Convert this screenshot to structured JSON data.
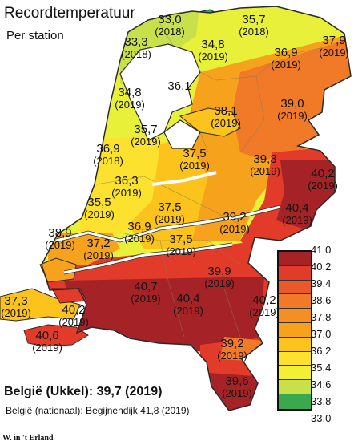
{
  "title": "Recordtemperatuur",
  "subtitle": "Per station",
  "colors": {
    "sea": "#ffffff",
    "outline": "#2a2a2a",
    "water": "#ffffff",
    "zones": [
      "#a52327",
      "#e23b2a",
      "#f07a28",
      "#f7a21c",
      "#fbc31b",
      "#fce22e",
      "#e9f03a",
      "#c8e04a",
      "#3aa84e"
    ]
  },
  "stations": [
    {
      "temp": "33,0",
      "year": "(2018)"
    },
    {
      "temp": "35,7",
      "year": "(2018)"
    },
    {
      "temp": "33,3",
      "year": "(2018)"
    },
    {
      "temp": "34,8",
      "year": "(2019)"
    },
    {
      "temp": "37,9",
      "year": "(2019)"
    },
    {
      "temp": "36,9",
      "year": "(2019)"
    },
    {
      "temp": "36,1",
      "year": ""
    },
    {
      "temp": "34,8",
      "year": "(2019)"
    },
    {
      "temp": "38,1",
      "year": "(2019)"
    },
    {
      "temp": "39,0",
      "year": "(2019)"
    },
    {
      "temp": "35,7",
      "year": "(2019)"
    },
    {
      "temp": "36,9",
      "year": "(2018)"
    },
    {
      "temp": "37,5",
      "year": "(2019)"
    },
    {
      "temp": "39,3",
      "year": "(2019)"
    },
    {
      "temp": "40,2",
      "year": "(2019)"
    },
    {
      "temp": "36,3",
      "year": "(2019)"
    },
    {
      "temp": "35,5",
      "year": "(2019)"
    },
    {
      "temp": "37,5",
      "year": "(2019)"
    },
    {
      "temp": "39,2",
      "year": "(2019)"
    },
    {
      "temp": "40,4",
      "year": "(2019)"
    },
    {
      "temp": "38,9",
      "year": "(2019)"
    },
    {
      "temp": "37,2",
      "year": "(2019)"
    },
    {
      "temp": "36,9",
      "year": "(2019)"
    },
    {
      "temp": "37,5",
      "year": "(2019)"
    },
    {
      "temp": "39,9",
      "year": "(2019)"
    },
    {
      "temp": "40,7",
      "year": "(2019)"
    },
    {
      "temp": "40,4",
      "year": "(2019)"
    },
    {
      "temp": "40,2",
      "year": "(2019)"
    },
    {
      "temp": "37,3",
      "year": "(2019)"
    },
    {
      "temp": "40,2",
      "year": "(2019)"
    },
    {
      "temp": "40,6",
      "year": "(2019)"
    },
    {
      "temp": "39,2",
      "year": "(2019)"
    },
    {
      "temp": "39,6",
      "year": "(2019)"
    }
  ],
  "legend": {
    "labels": [
      "41,0",
      "40,2",
      "39,4",
      "38,6",
      "37,8",
      "37,0",
      "36,2",
      "35,4",
      "34,6",
      "33,8",
      "33,0"
    ],
    "colors": [
      "#a52327",
      "#e23b2a",
      "#e95a2b",
      "#f07a28",
      "#f58f22",
      "#f7a21c",
      "#fbc31b",
      "#fce22e",
      "#f3ef35",
      "#c8e04a",
      "#3aa84e"
    ]
  },
  "belgium": {
    "headline": "België (Ukkel): 39,7 (2019)",
    "national": "België (nationaal): Begijnendijk 41,8 (2019)"
  },
  "credit": "W. in 't Erland"
}
